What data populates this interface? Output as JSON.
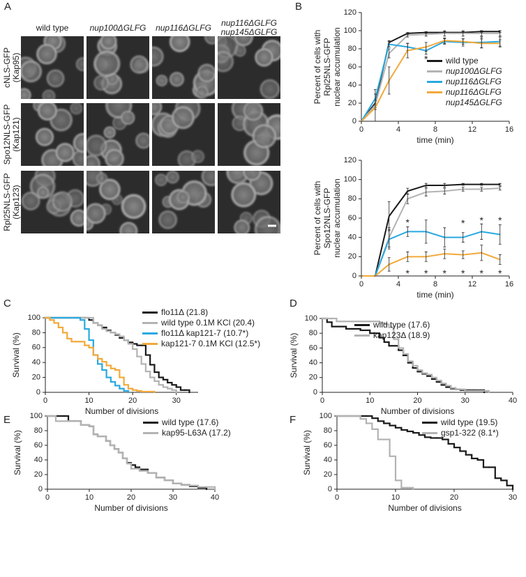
{
  "images": {
    "panel": "A",
    "columns": [
      [
        "wild type"
      ],
      [
        "nup100ΔGLFG"
      ],
      [
        "nup116ΔGLFG"
      ],
      [
        "nup116ΔGLFG",
        "nup145ΔGLFG"
      ]
    ],
    "rows": [
      [
        "cNLS-GFP",
        "(Kap95)"
      ],
      [
        "Spo12NLS-GFP",
        "(Kap121)"
      ],
      [
        "Rpl25NLS-GFP",
        "(Kap123)"
      ]
    ]
  },
  "chart_data": [
    {
      "type": "line",
      "panel": "B",
      "ylabel": [
        "Percent of cells with",
        "Rpl25NLS-GFP",
        "nuclear accumulation"
      ],
      "xlabel": "time (min)",
      "x": [
        0,
        1.5,
        3,
        5,
        7,
        9,
        11,
        13,
        15
      ],
      "xlim": [
        0,
        16
      ],
      "xticks": [
        0,
        4,
        8,
        12,
        16
      ],
      "ylim": [
        0,
        120
      ],
      "yticks": [
        0,
        20,
        40,
        60,
        80,
        100,
        120
      ],
      "grid": false,
      "legend": "right",
      "series": [
        {
          "name": "wild type",
          "color": "#1a1a1a",
          "values": [
            0,
            20,
            87,
            97,
            98,
            98,
            98,
            99,
            99
          ],
          "errors": [
            0,
            3,
            2,
            1,
            1,
            1,
            1,
            1,
            1
          ]
        },
        {
          "name": "nup100ΔGLFG",
          "color": "#b3b3b3",
          "values": [
            0,
            18,
            75,
            95,
            96,
            97,
            97,
            97,
            97
          ],
          "errors": [
            0,
            5,
            5,
            2,
            2,
            3,
            3,
            3,
            3
          ]
        },
        {
          "name": "nup116ΔGLFG",
          "color": "#29a9e0",
          "values": [
            0,
            25,
            85,
            82,
            78,
            88,
            87,
            87,
            88
          ],
          "errors": [
            0,
            10,
            3,
            4,
            4,
            3,
            4,
            6,
            5
          ]
        },
        {
          "name": "nup116ΔGLFG nup145ΔGLFG",
          "color": "#f2a93b",
          "values": [
            0,
            15,
            45,
            78,
            82,
            89,
            88,
            86,
            86
          ],
          "errors": [
            0,
            15,
            15,
            8,
            5,
            3,
            3,
            5,
            4
          ]
        }
      ],
      "annotations": [
        {
          "text": "*",
          "x": 7,
          "y": 70
        }
      ]
    },
    {
      "type": "line",
      "panel": "",
      "ylabel": [
        "Percent of cells with",
        "Spo12NLS-GFP",
        "nuclear accumulation"
      ],
      "xlabel": "time (min)",
      "x": [
        0,
        1.5,
        3,
        5,
        7,
        9,
        11,
        13,
        15
      ],
      "xlim": [
        0,
        16
      ],
      "xticks": [
        0,
        4,
        8,
        12,
        16
      ],
      "ylim": [
        0,
        120
      ],
      "yticks": [
        0,
        20,
        40,
        60,
        80,
        100,
        120
      ],
      "grid": false,
      "series": [
        {
          "color": "#1a1a1a",
          "values": [
            0,
            0,
            62,
            88,
            94,
            94,
            95,
            95,
            95
          ],
          "errors": [
            0,
            0,
            15,
            3,
            2,
            2,
            1,
            1,
            1
          ]
        },
        {
          "color": "#b3b3b3",
          "values": [
            0,
            0,
            40,
            80,
            87,
            88,
            90,
            90,
            91
          ],
          "errors": [
            0,
            0,
            10,
            5,
            4,
            3,
            2,
            2,
            2
          ]
        },
        {
          "color": "#29a9e0",
          "values": [
            0,
            0,
            38,
            46,
            46,
            40,
            40,
            46,
            43
          ],
          "errors": [
            0,
            0,
            10,
            5,
            12,
            10,
            5,
            8,
            10
          ]
        },
        {
          "color": "#f2a93b",
          "values": [
            0,
            0,
            12,
            20,
            20,
            23,
            22,
            24,
            17
          ],
          "errors": [
            0,
            0,
            7,
            5,
            5,
            5,
            4,
            8,
            5
          ]
        }
      ],
      "annotations": [
        {
          "text": "*",
          "x": 5,
          "y": 57
        },
        {
          "text": "*",
          "x": 11,
          "y": 56
        },
        {
          "text": "*",
          "x": 13,
          "y": 59
        },
        {
          "text": "*",
          "x": 15,
          "y": 59
        },
        {
          "text": "*",
          "x": 5,
          "y": 4
        },
        {
          "text": "*",
          "x": 7,
          "y": 4
        },
        {
          "text": "*",
          "x": 9,
          "y": 4
        },
        {
          "text": "*",
          "x": 11,
          "y": 4
        },
        {
          "text": "*",
          "x": 13,
          "y": 4
        },
        {
          "text": "*",
          "x": 15,
          "y": 4
        }
      ]
    },
    {
      "type": "step",
      "panel": "C",
      "ylabel": [
        "Survival (%)"
      ],
      "xlabel": "Number of divisions",
      "xlim": [
        0,
        35
      ],
      "xticks": [
        0,
        10,
        20,
        30
      ],
      "ylim": [
        0,
        100
      ],
      "yticks": [
        0,
        20,
        40,
        60,
        80,
        100
      ],
      "grid": false,
      "legend": "upper right",
      "series": [
        {
          "name": "flo11Δ (21.8)",
          "color": "#1a1a1a",
          "x": [
            0,
            9,
            10,
            11,
            12,
            13,
            14,
            15,
            16,
            17,
            18,
            19,
            20,
            21,
            22,
            23,
            24,
            25,
            26,
            27,
            28,
            29,
            30,
            31,
            32,
            33
          ],
          "values": [
            100,
            100,
            97,
            93,
            90,
            87,
            83,
            80,
            77,
            73,
            70,
            67,
            65,
            63,
            63,
            50,
            37,
            27,
            20,
            17,
            13,
            10,
            7,
            3,
            3,
            0
          ]
        },
        {
          "name": "wild type 0.1M KCl (20.4)",
          "color": "#b3b3b3",
          "x": [
            0,
            10,
            11,
            12,
            13,
            14,
            15,
            16,
            17,
            18,
            19,
            20,
            21,
            22,
            23,
            24,
            25,
            26,
            27,
            28,
            29,
            30
          ],
          "values": [
            100,
            100,
            93,
            90,
            85,
            82,
            80,
            78,
            75,
            70,
            65,
            58,
            48,
            38,
            28,
            20,
            15,
            10,
            7,
            5,
            3,
            0
          ]
        },
        {
          "name": "flo11Δ kap121-7 (10.7*)",
          "color": "#29a9e0",
          "x": [
            0,
            8,
            9,
            10,
            11,
            12,
            13,
            14,
            15,
            16,
            17,
            18,
            19
          ],
          "values": [
            100,
            97,
            85,
            70,
            50,
            38,
            30,
            20,
            14,
            9,
            5,
            2,
            0
          ]
        },
        {
          "name": "kap121-7 0.1M KCl (12.5*)",
          "color": "#f2a93b",
          "x": [
            0,
            1,
            2,
            3,
            4,
            5,
            6,
            7,
            8,
            9,
            10,
            11,
            12,
            13,
            14,
            15,
            16,
            17,
            18,
            19,
            20,
            21,
            22,
            25
          ],
          "values": [
            100,
            97,
            93,
            87,
            80,
            72,
            68,
            68,
            68,
            63,
            60,
            50,
            45,
            41,
            36,
            32,
            30,
            20,
            10,
            5,
            3,
            2,
            1,
            0
          ]
        }
      ]
    },
    {
      "type": "step",
      "panel": "D",
      "ylabel": [
        "Survival (%)"
      ],
      "xlabel": "Number of divisions",
      "xlim": [
        0,
        40
      ],
      "xticks": [
        0,
        10,
        20,
        30,
        40
      ],
      "ylim": [
        0,
        100
      ],
      "yticks": [
        0,
        20,
        40,
        60,
        80,
        100
      ],
      "grid": false,
      "legend": "upper left",
      "series": [
        {
          "name": "wild type (17.6)",
          "color": "#1a1a1a",
          "x": [
            0,
            1,
            2,
            5,
            8,
            10,
            12,
            13,
            14,
            16,
            17,
            18,
            19,
            20,
            21,
            22,
            23,
            24,
            25,
            26,
            27,
            28,
            29,
            30,
            32,
            34
          ],
          "values": [
            100,
            95,
            89,
            86,
            84,
            80,
            74,
            68,
            63,
            57,
            50,
            40,
            33,
            28,
            25,
            22,
            18,
            14,
            10,
            7,
            5,
            4,
            3,
            3,
            3,
            0
          ]
        },
        {
          "name": "kap123Δ (18.9)",
          "color": "#b3b3b3",
          "x": [
            0,
            2,
            3,
            10,
            12,
            13,
            14,
            15,
            16,
            17,
            18,
            19,
            20,
            21,
            22,
            23,
            24,
            25,
            26,
            27,
            28,
            30,
            32,
            35
          ],
          "values": [
            100,
            100,
            96,
            96,
            94,
            92,
            88,
            72,
            60,
            52,
            42,
            36,
            30,
            26,
            24,
            20,
            16,
            12,
            9,
            6,
            4,
            2,
            2,
            0
          ]
        }
      ]
    },
    {
      "type": "step",
      "panel": "E",
      "ylabel": [
        "Survival (%)"
      ],
      "xlabel": "Number of divisions",
      "xlim": [
        0,
        40
      ],
      "xticks": [
        0,
        10,
        20,
        30,
        40
      ],
      "ylim": [
        0,
        100
      ],
      "yticks": [
        0,
        20,
        40,
        60,
        80,
        100
      ],
      "grid": false,
      "legend": "upper right",
      "series": [
        {
          "name": "wild type (17.6)",
          "color": "#1a1a1a",
          "x": [
            0,
            4,
            5,
            8,
            10,
            11,
            12,
            14,
            15,
            16,
            17,
            18,
            19,
            20,
            21,
            22,
            24,
            26,
            28,
            30,
            32,
            34,
            36,
            38
          ],
          "values": [
            100,
            100,
            93,
            88,
            86,
            75,
            72,
            66,
            60,
            55,
            50,
            42,
            36,
            33,
            30,
            27,
            22,
            16,
            12,
            8,
            6,
            4,
            2,
            0
          ]
        },
        {
          "name": "kap95-L63A (17.2)",
          "color": "#b3b3b3",
          "x": [
            0,
            2,
            5,
            8,
            10,
            11,
            12,
            14,
            15,
            16,
            17,
            18,
            19,
            20,
            22,
            24,
            26,
            28,
            30,
            32,
            34,
            36,
            38,
            40
          ],
          "values": [
            100,
            93,
            93,
            88,
            86,
            75,
            72,
            66,
            60,
            55,
            50,
            42,
            35,
            28,
            25,
            22,
            16,
            12,
            8,
            6,
            5,
            3,
            3,
            0
          ]
        }
      ]
    },
    {
      "type": "step",
      "panel": "F",
      "ylabel": [
        "Survival (%)"
      ],
      "xlabel": "Number of divisions",
      "xlim": [
        0,
        30
      ],
      "xticks": [
        0,
        10,
        20,
        30
      ],
      "ylim": [
        0,
        100
      ],
      "yticks": [
        0,
        20,
        40,
        60,
        80,
        100
      ],
      "grid": false,
      "legend": "upper right",
      "series": [
        {
          "name": "wild type (19.5)",
          "color": "#1a1a1a",
          "x": [
            0,
            5,
            6,
            7,
            8,
            9,
            10,
            11,
            12,
            13,
            14,
            15,
            16,
            17,
            18,
            19,
            20,
            21,
            22,
            23,
            24,
            25,
            26,
            27,
            28,
            29,
            30
          ],
          "values": [
            100,
            100,
            97,
            93,
            90,
            87,
            84,
            81,
            79,
            77,
            74,
            71,
            70,
            70,
            68,
            62,
            57,
            52,
            47,
            42,
            40,
            30,
            30,
            15,
            12,
            5,
            0
          ]
        },
        {
          "name": "gsp1-322 (8.1*)",
          "color": "#b3b3b3",
          "x": [
            0,
            4,
            5,
            6,
            7,
            8,
            9,
            10,
            11,
            13
          ],
          "values": [
            100,
            96,
            90,
            82,
            68,
            68,
            45,
            12,
            2,
            0
          ]
        }
      ]
    }
  ]
}
